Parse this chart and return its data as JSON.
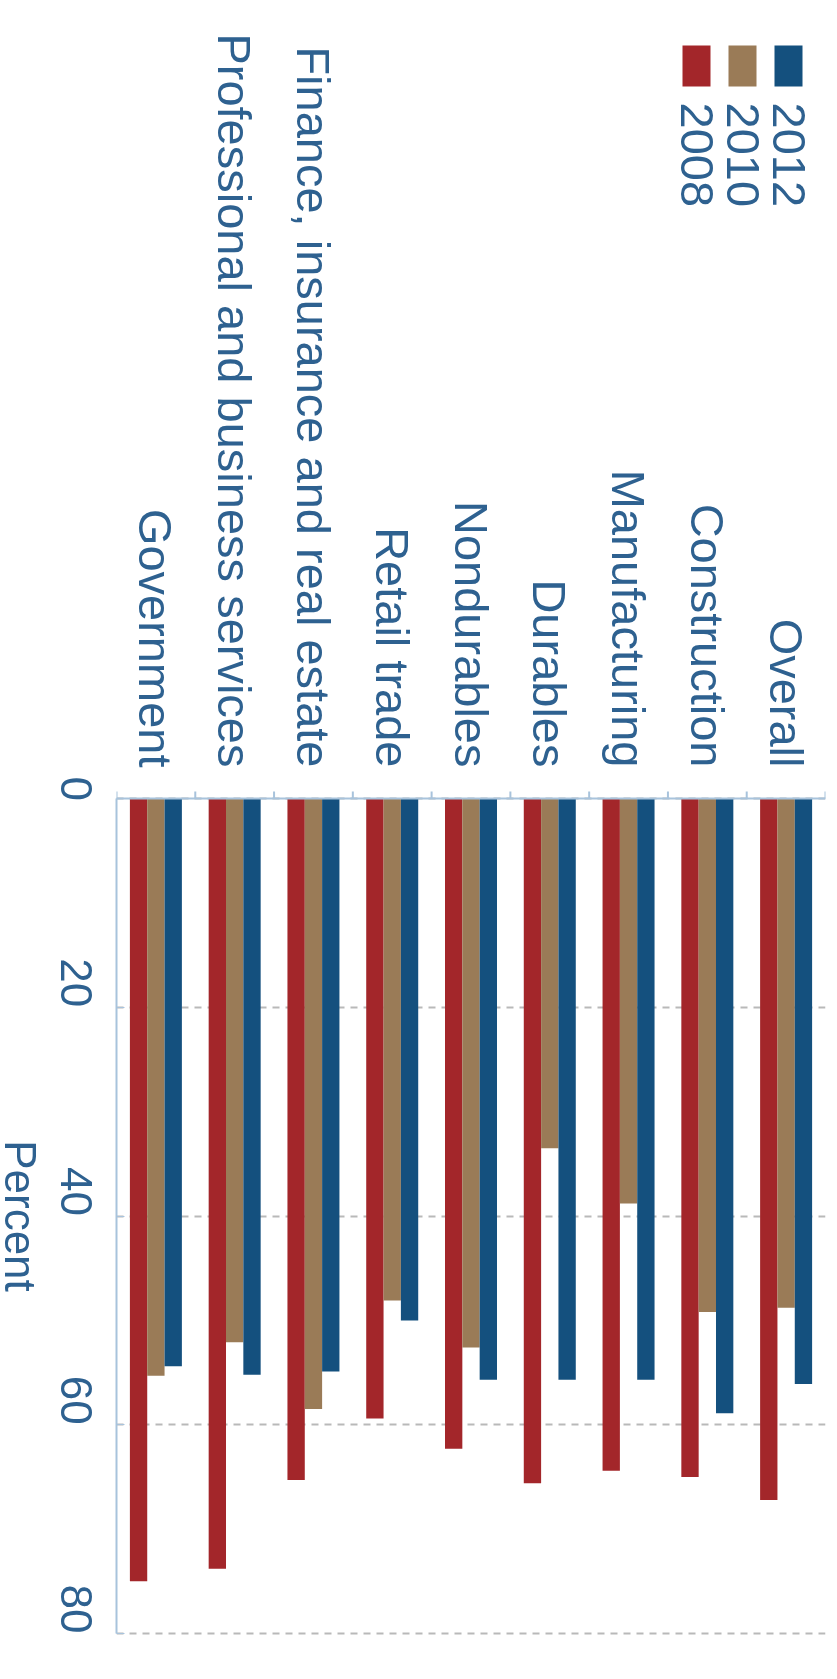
{
  "chart_data": {
    "type": "bar",
    "categories": [
      "Government",
      "Professional and business services",
      "Finance, insurance and real estate",
      "Retail trade",
      "Nondurables",
      "Durables",
      "Manufacturing",
      "Construction",
      "Overall"
    ],
    "series": [
      {
        "name": "2008",
        "color": "#a3262a",
        "values": [
          75.0,
          73.8,
          65.3,
          59.4,
          62.3,
          65.6,
          64.4,
          65.0,
          67.2
        ]
      },
      {
        "name": "2010",
        "color": "#9a7b57",
        "values": [
          55.3,
          52.1,
          58.5,
          48.1,
          52.6,
          33.5,
          38.8,
          49.2,
          48.8
        ]
      },
      {
        "name": "2012",
        "color": "#14507e",
        "values": [
          54.4,
          55.2,
          54.9,
          50.0,
          55.7,
          55.7,
          55.7,
          58.9,
          56.1
        ]
      }
    ],
    "ylabel": "Percent",
    "ylim": [
      80,
      0
    ],
    "yticks": [
      0,
      20,
      40,
      60,
      80
    ],
    "grid": "y",
    "legend": "top right"
  }
}
